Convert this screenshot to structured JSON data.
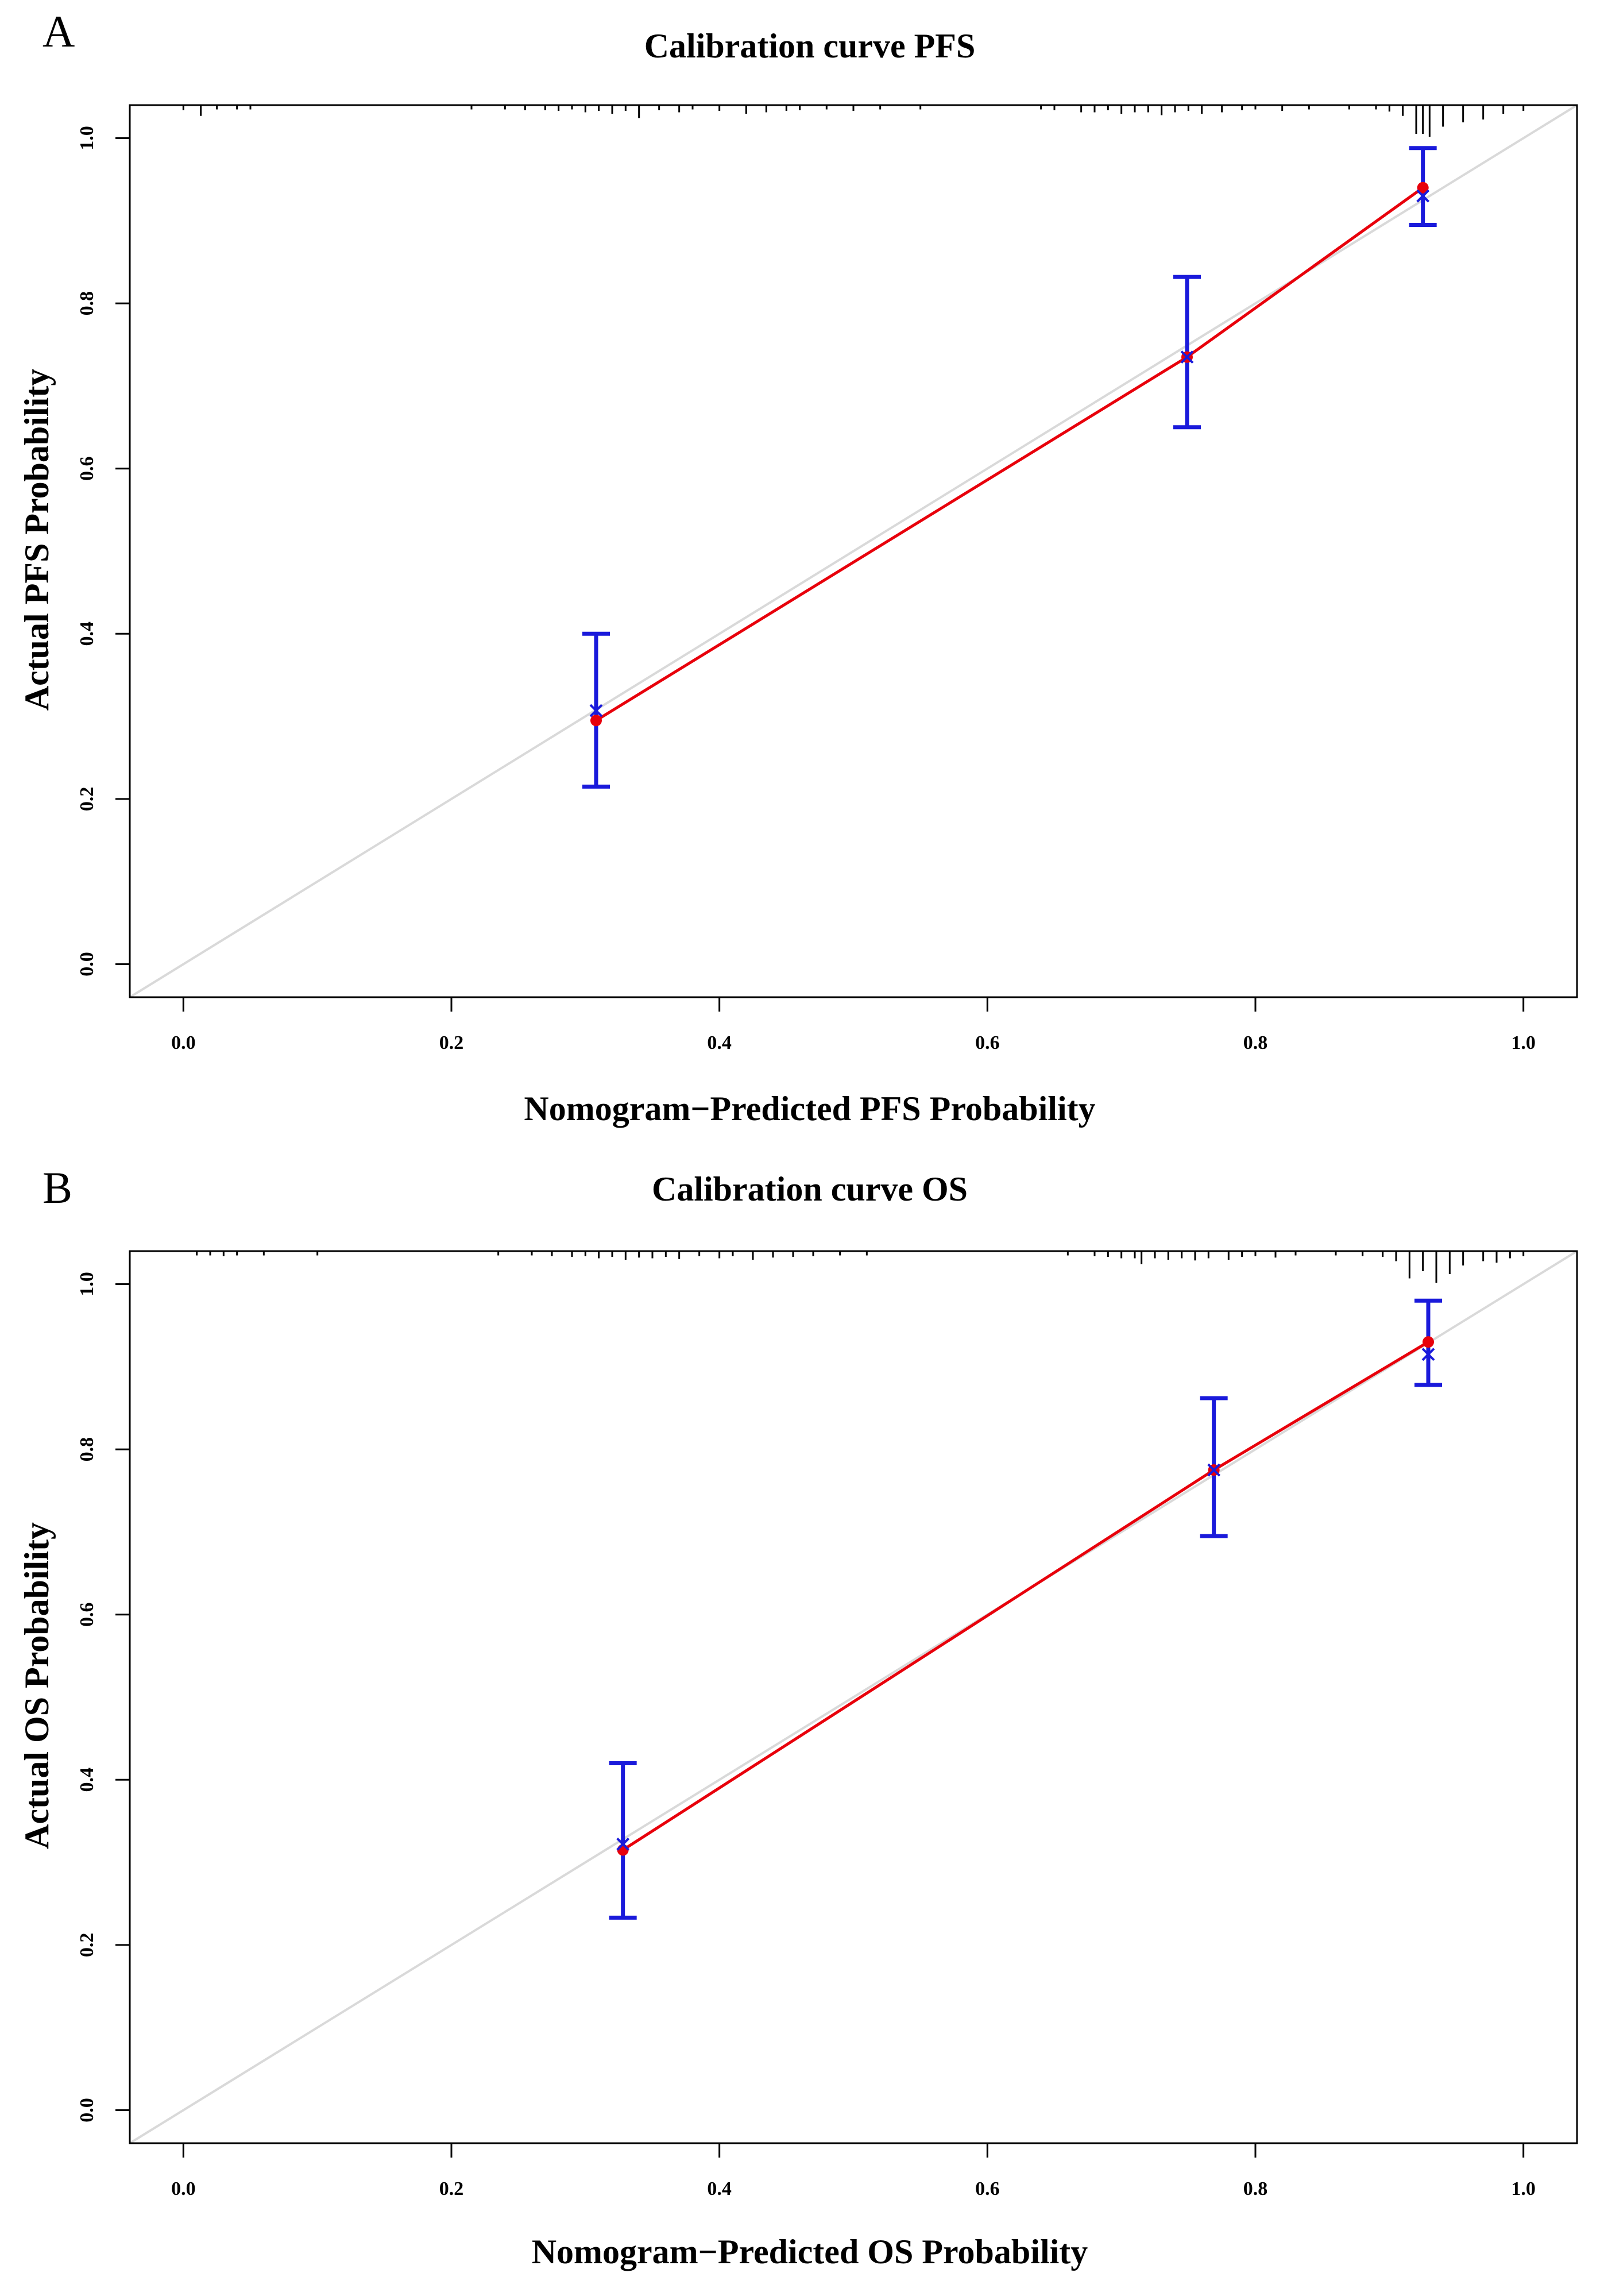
{
  "chart_data": [
    {
      "panel": "A",
      "type": "scatter",
      "title": "Calibration curve PFS",
      "xlabel": "Nomogram−Predicted PFS Probability",
      "ylabel": "Actual PFS Probability",
      "xlim": [
        -0.04,
        1.04
      ],
      "ylim": [
        -0.04,
        1.04
      ],
      "x_ticks": [
        0.0,
        0.2,
        0.4,
        0.6,
        0.8,
        1.0
      ],
      "y_ticks": [
        0.0,
        0.2,
        0.4,
        0.6,
        0.8,
        1.0
      ],
      "x_tick_labels": [
        "0.0",
        "0.2",
        "0.4",
        "0.6",
        "0.8",
        "1.0"
      ],
      "y_tick_labels": [
        "0.0",
        "0.2",
        "0.4",
        "0.6",
        "0.8",
        "1.0"
      ],
      "series": [
        {
          "name": "ideal",
          "type": "line",
          "color": "#d9d9d9",
          "x": [
            -0.04,
            1.04
          ],
          "y": [
            -0.04,
            1.04
          ]
        },
        {
          "name": "apparent",
          "type": "line+points",
          "color": "#e8000b",
          "x": [
            0.308,
            0.749,
            0.925
          ],
          "y": [
            0.295,
            0.735,
            0.94
          ]
        },
        {
          "name": "bias-corrected",
          "type": "points-x",
          "color": "#1a1adb",
          "x": [
            0.308,
            0.749,
            0.925
          ],
          "y": [
            0.307,
            0.735,
            0.93
          ]
        },
        {
          "name": "95% CI",
          "type": "errorbar",
          "color": "#1a1adb",
          "x": [
            0.308,
            0.749,
            0.925
          ],
          "lower": [
            0.215,
            0.65,
            0.895
          ],
          "upper": [
            0.4,
            0.832,
            0.988
          ]
        }
      ],
      "rug": [
        {
          "x": 0.0,
          "h": 0.35
        },
        {
          "x": 0.013,
          "h": 0.75
        },
        {
          "x": 0.025,
          "h": 0.3
        },
        {
          "x": 0.04,
          "h": 0.3
        },
        {
          "x": 0.05,
          "h": 0.3
        },
        {
          "x": 0.215,
          "h": 0.3
        },
        {
          "x": 0.24,
          "h": 0.3
        },
        {
          "x": 0.255,
          "h": 0.35
        },
        {
          "x": 0.27,
          "h": 0.35
        },
        {
          "x": 0.28,
          "h": 0.4
        },
        {
          "x": 0.29,
          "h": 0.3
        },
        {
          "x": 0.3,
          "h": 0.5
        },
        {
          "x": 0.31,
          "h": 0.4
        },
        {
          "x": 0.32,
          "h": 0.6
        },
        {
          "x": 0.33,
          "h": 0.4
        },
        {
          "x": 0.34,
          "h": 0.9
        },
        {
          "x": 0.355,
          "h": 0.35
        },
        {
          "x": 0.37,
          "h": 0.5
        },
        {
          "x": 0.38,
          "h": 0.3
        },
        {
          "x": 0.4,
          "h": 0.4
        },
        {
          "x": 0.42,
          "h": 0.6
        },
        {
          "x": 0.435,
          "h": 0.5
        },
        {
          "x": 0.45,
          "h": 0.4
        },
        {
          "x": 0.46,
          "h": 0.35
        },
        {
          "x": 0.48,
          "h": 0.3
        },
        {
          "x": 0.5,
          "h": 0.4
        },
        {
          "x": 0.52,
          "h": 0.3
        },
        {
          "x": 0.55,
          "h": 0.3
        },
        {
          "x": 0.64,
          "h": 0.3
        },
        {
          "x": 0.65,
          "h": 0.35
        },
        {
          "x": 0.67,
          "h": 0.5
        },
        {
          "x": 0.68,
          "h": 0.5
        },
        {
          "x": 0.69,
          "h": 0.35
        },
        {
          "x": 0.7,
          "h": 0.6
        },
        {
          "x": 0.71,
          "h": 0.5
        },
        {
          "x": 0.72,
          "h": 0.5
        },
        {
          "x": 0.73,
          "h": 0.7
        },
        {
          "x": 0.74,
          "h": 0.5
        },
        {
          "x": 0.75,
          "h": 0.4
        },
        {
          "x": 0.76,
          "h": 0.6
        },
        {
          "x": 0.775,
          "h": 0.5
        },
        {
          "x": 0.79,
          "h": 0.35
        },
        {
          "x": 0.8,
          "h": 0.3
        },
        {
          "x": 0.82,
          "h": 0.4
        },
        {
          "x": 0.84,
          "h": 0.3
        },
        {
          "x": 0.87,
          "h": 0.3
        },
        {
          "x": 0.89,
          "h": 0.3
        },
        {
          "x": 0.9,
          "h": 0.45
        },
        {
          "x": 0.91,
          "h": 0.75
        },
        {
          "x": 0.92,
          "h": 2.0
        },
        {
          "x": 0.925,
          "h": 2.0
        },
        {
          "x": 0.93,
          "h": 2.2
        },
        {
          "x": 0.94,
          "h": 1.5
        },
        {
          "x": 0.955,
          "h": 1.2
        },
        {
          "x": 0.97,
          "h": 1.0
        },
        {
          "x": 0.985,
          "h": 0.6
        },
        {
          "x": 1.0,
          "h": 0.4
        }
      ]
    },
    {
      "panel": "B",
      "type": "scatter",
      "title": "Calibration curve OS",
      "xlabel": "Nomogram−Predicted OS Probability",
      "ylabel": "Actual OS Probability",
      "xlim": [
        -0.04,
        1.04
      ],
      "ylim": [
        -0.04,
        1.04
      ],
      "x_ticks": [
        0.0,
        0.2,
        0.4,
        0.6,
        0.8,
        1.0
      ],
      "y_ticks": [
        0.0,
        0.2,
        0.4,
        0.6,
        0.8,
        1.0
      ],
      "x_tick_labels": [
        "0.0",
        "0.2",
        "0.4",
        "0.6",
        "0.8",
        "1.0"
      ],
      "y_tick_labels": [
        "0.0",
        "0.2",
        "0.4",
        "0.6",
        "0.8",
        "1.0"
      ],
      "series": [
        {
          "name": "ideal",
          "type": "line",
          "color": "#d9d9d9",
          "x": [
            -0.04,
            1.04
          ],
          "y": [
            -0.04,
            1.04
          ]
        },
        {
          "name": "apparent",
          "type": "line+points",
          "color": "#e8000b",
          "x": [
            0.328,
            0.769,
            0.929
          ],
          "y": [
            0.315,
            0.775,
            0.93
          ]
        },
        {
          "name": "bias-corrected",
          "type": "points-x",
          "color": "#1a1adb",
          "x": [
            0.328,
            0.769,
            0.929
          ],
          "y": [
            0.322,
            0.775,
            0.915
          ]
        },
        {
          "name": "95% CI",
          "type": "errorbar",
          "color": "#1a1adb",
          "x": [
            0.328,
            0.769,
            0.929
          ],
          "lower": [
            0.233,
            0.695,
            0.878
          ],
          "upper": [
            0.42,
            0.862,
            0.98
          ]
        }
      ],
      "rug": [
        {
          "x": 0.01,
          "h": 0.3
        },
        {
          "x": 0.02,
          "h": 0.3
        },
        {
          "x": 0.03,
          "h": 0.35
        },
        {
          "x": 0.04,
          "h": 0.3
        },
        {
          "x": 0.06,
          "h": 0.3
        },
        {
          "x": 0.1,
          "h": 0.3
        },
        {
          "x": 0.235,
          "h": 0.3
        },
        {
          "x": 0.26,
          "h": 0.3
        },
        {
          "x": 0.275,
          "h": 0.35
        },
        {
          "x": 0.29,
          "h": 0.4
        },
        {
          "x": 0.3,
          "h": 0.35
        },
        {
          "x": 0.31,
          "h": 0.5
        },
        {
          "x": 0.32,
          "h": 0.4
        },
        {
          "x": 0.33,
          "h": 0.6
        },
        {
          "x": 0.34,
          "h": 0.45
        },
        {
          "x": 0.35,
          "h": 0.5
        },
        {
          "x": 0.36,
          "h": 0.4
        },
        {
          "x": 0.37,
          "h": 0.55
        },
        {
          "x": 0.385,
          "h": 0.35
        },
        {
          "x": 0.4,
          "h": 0.5
        },
        {
          "x": 0.41,
          "h": 0.35
        },
        {
          "x": 0.425,
          "h": 0.6
        },
        {
          "x": 0.44,
          "h": 0.45
        },
        {
          "x": 0.455,
          "h": 0.4
        },
        {
          "x": 0.47,
          "h": 0.35
        },
        {
          "x": 0.49,
          "h": 0.3
        },
        {
          "x": 0.51,
          "h": 0.3
        },
        {
          "x": 0.66,
          "h": 0.3
        },
        {
          "x": 0.68,
          "h": 0.35
        },
        {
          "x": 0.69,
          "h": 0.4
        },
        {
          "x": 0.7,
          "h": 0.5
        },
        {
          "x": 0.71,
          "h": 0.5
        },
        {
          "x": 0.715,
          "h": 0.9
        },
        {
          "x": 0.725,
          "h": 0.5
        },
        {
          "x": 0.735,
          "h": 0.6
        },
        {
          "x": 0.745,
          "h": 0.5
        },
        {
          "x": 0.755,
          "h": 0.65
        },
        {
          "x": 0.765,
          "h": 0.5
        },
        {
          "x": 0.78,
          "h": 0.6
        },
        {
          "x": 0.79,
          "h": 0.4
        },
        {
          "x": 0.8,
          "h": 0.35
        },
        {
          "x": 0.815,
          "h": 0.45
        },
        {
          "x": 0.83,
          "h": 0.3
        },
        {
          "x": 0.86,
          "h": 0.3
        },
        {
          "x": 0.88,
          "h": 0.35
        },
        {
          "x": 0.895,
          "h": 0.4
        },
        {
          "x": 0.905,
          "h": 0.7
        },
        {
          "x": 0.915,
          "h": 1.9
        },
        {
          "x": 0.925,
          "h": 1.4
        },
        {
          "x": 0.935,
          "h": 2.2
        },
        {
          "x": 0.945,
          "h": 1.6
        },
        {
          "x": 0.955,
          "h": 1.0
        },
        {
          "x": 0.97,
          "h": 0.7
        },
        {
          "x": 0.98,
          "h": 0.8
        },
        {
          "x": 0.99,
          "h": 0.5
        },
        {
          "x": 1.0,
          "h": 0.35
        }
      ]
    }
  ]
}
